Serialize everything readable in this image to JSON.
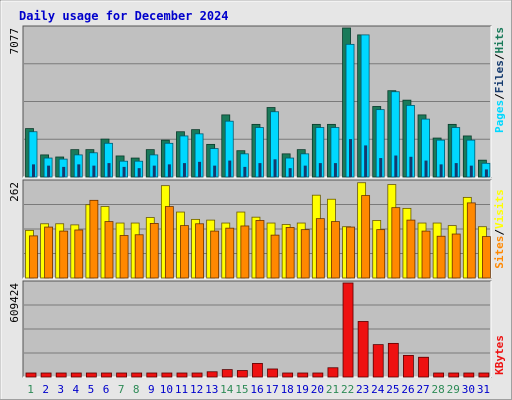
{
  "title": "Daily usage for December 2024",
  "colors": {
    "hits": "#1a7a5a",
    "files": "#00d8ff",
    "pages": "#143a6e",
    "visits": "#ffff00",
    "sites": "#ff8800",
    "kbytes": "#ee1111",
    "title": "#0000cc",
    "weekend_label": "#2e8b57",
    "weekday_label": "#0000cc",
    "panel_bg": "#c0c0c0"
  },
  "side_labels": {
    "top": [
      "Pages",
      "Files",
      "Hits"
    ],
    "mid": [
      "Sites",
      "Visits"
    ],
    "bot": [
      "KBytes"
    ]
  },
  "chart_data": [
    {
      "type": "bar",
      "title": "Daily usage for December 2024",
      "y_max_label": "7077",
      "ylim": [
        0,
        7077
      ],
      "categories": [
        "1",
        "2",
        "3",
        "4",
        "5",
        "6",
        "7",
        "8",
        "9",
        "10",
        "11",
        "12",
        "13",
        "14",
        "15",
        "16",
        "17",
        "18",
        "19",
        "20",
        "21",
        "22",
        "23",
        "24",
        "25",
        "26",
        "27",
        "28",
        "29",
        "30",
        "31"
      ],
      "weekend_days": [
        1,
        7,
        8,
        14,
        15,
        21,
        22,
        28,
        29
      ],
      "series": [
        {
          "name": "Hits",
          "values": [
            2300,
            1050,
            950,
            1300,
            1300,
            1800,
            1000,
            900,
            1300,
            1750,
            2150,
            2250,
            1550,
            2950,
            1250,
            2500,
            3300,
            1100,
            1300,
            2500,
            2500,
            7077,
            6750,
            3350,
            4100,
            3650,
            2950,
            1850,
            2500,
            1950,
            800
          ]
        },
        {
          "name": "Files",
          "values": [
            2150,
            900,
            850,
            1050,
            1150,
            1600,
            750,
            750,
            1050,
            1600,
            1950,
            2050,
            1350,
            2650,
            1100,
            2350,
            3100,
            900,
            1100,
            2350,
            2350,
            6300,
            6750,
            3200,
            4050,
            3400,
            2750,
            1750,
            2350,
            1750,
            650
          ]
        },
        {
          "name": "Pages",
          "values": [
            100,
            90,
            80,
            100,
            90,
            110,
            80,
            70,
            90,
            100,
            110,
            120,
            90,
            130,
            80,
            110,
            140,
            70,
            90,
            110,
            110,
            300,
            250,
            150,
            170,
            160,
            130,
            100,
            110,
            90,
            60
          ]
        }
      ]
    },
    {
      "type": "bar",
      "y_max_label": "262",
      "ylim": [
        0,
        262
      ],
      "categories": [
        "1",
        "2",
        "3",
        "4",
        "5",
        "6",
        "7",
        "8",
        "9",
        "10",
        "11",
        "12",
        "13",
        "14",
        "15",
        "16",
        "17",
        "18",
        "19",
        "20",
        "21",
        "22",
        "23",
        "24",
        "25",
        "26",
        "27",
        "28",
        "29",
        "30",
        "31"
      ],
      "series": [
        {
          "name": "Visits",
          "values": [
            130,
            148,
            148,
            145,
            200,
            195,
            150,
            150,
            165,
            252,
            180,
            160,
            158,
            150,
            180,
            166,
            150,
            146,
            150,
            226,
            215,
            140,
            260,
            157,
            255,
            190,
            150,
            150,
            143,
            220,
            140
          ]
        },
        {
          "name": "Sites",
          "values": [
            115,
            139,
            128,
            131,
            212,
            154,
            116,
            118,
            149,
            195,
            143,
            148,
            128,
            136,
            142,
            157,
            117,
            138,
            132,
            162,
            154,
            139,
            225,
            132,
            192,
            158,
            128,
            114,
            120,
            205,
            113
          ]
        }
      ]
    },
    {
      "type": "bar",
      "y_max_label": "609424",
      "ylim": [
        0,
        609424
      ],
      "categories": [
        "1",
        "2",
        "3",
        "4",
        "5",
        "6",
        "7",
        "8",
        "9",
        "10",
        "11",
        "12",
        "13",
        "14",
        "15",
        "16",
        "17",
        "18",
        "19",
        "20",
        "21",
        "22",
        "23",
        "24",
        "25",
        "26",
        "27",
        "28",
        "29",
        "30",
        "31"
      ],
      "series": [
        {
          "name": "KBytes",
          "values": [
            18000,
            14000,
            14000,
            20000,
            18000,
            16000,
            12000,
            8000,
            20000,
            20000,
            18000,
            20000,
            34000,
            48000,
            42000,
            88000,
            52000,
            14000,
            14000,
            16000,
            60000,
            609424,
            360000,
            210000,
            218000,
            140000,
            128000,
            20000,
            20000,
            20000,
            16000
          ]
        }
      ]
    }
  ]
}
